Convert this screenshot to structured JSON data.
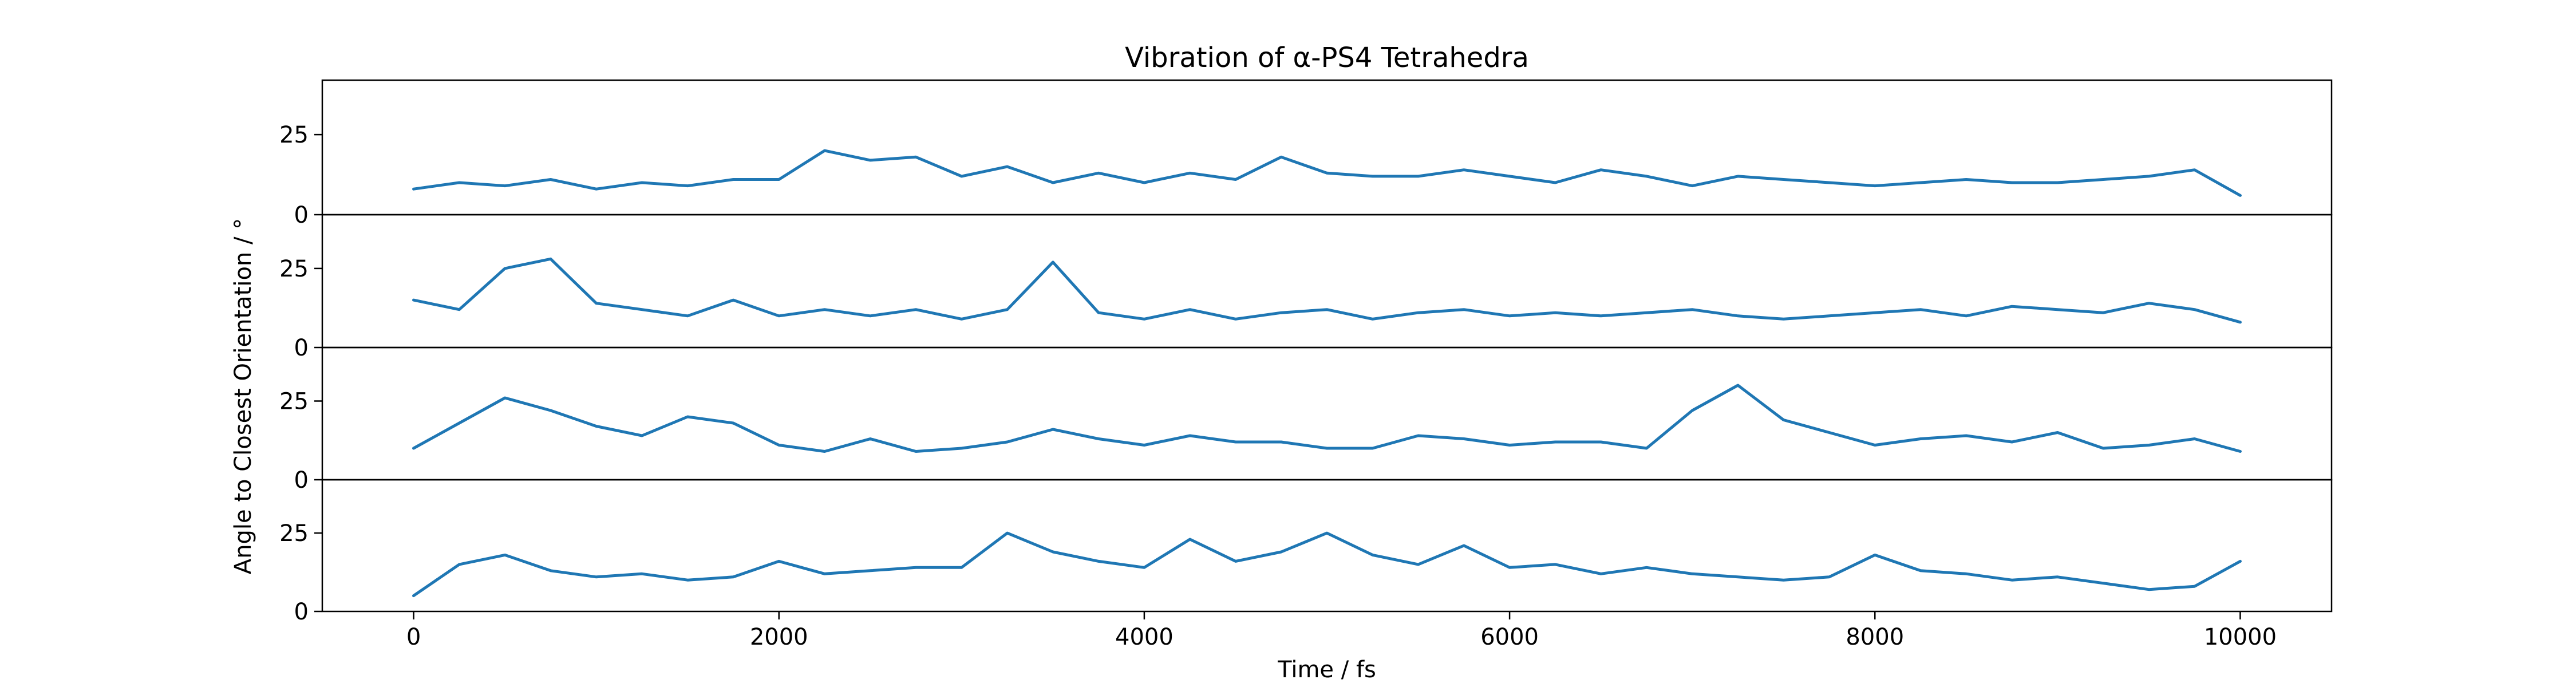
{
  "chart_data": {
    "type": "line",
    "title": "Vibration of α-PS4 Tetrahedra",
    "xlabel": "Time / fs",
    "ylabel": "Angle to Closest Orientation / °",
    "xlim": [
      -500,
      10500
    ],
    "ylim": [
      0,
      42
    ],
    "xticks": [
      0,
      2000,
      4000,
      6000,
      8000,
      10000
    ],
    "xtick_labels": [
      "0",
      "2000",
      "4000",
      "6000",
      "8000",
      "10000"
    ],
    "yticks": [
      0,
      25
    ],
    "ytick_labels": [
      "0",
      "25"
    ],
    "grid": false,
    "legend": "none",
    "line_color": "#1f77b4",
    "panels": [
      {
        "x": [
          0,
          250,
          500,
          750,
          1000,
          1250,
          1500,
          1750,
          2000,
          2250,
          2500,
          2750,
          3000,
          3250,
          3500,
          3750,
          4000,
          4250,
          4500,
          4750,
          5000,
          5250,
          5500,
          5750,
          6000,
          6250,
          6500,
          6750,
          7000,
          7250,
          7500,
          7750,
          8000,
          8250,
          8500,
          8750,
          9000,
          9250,
          9500,
          9750,
          10000
        ],
        "y": [
          8,
          10,
          9,
          11,
          8,
          10,
          9,
          11,
          11,
          20,
          17,
          18,
          12,
          15,
          10,
          13,
          10,
          13,
          11,
          18,
          13,
          12,
          12,
          14,
          12,
          10,
          14,
          12,
          9,
          12,
          11,
          10,
          9,
          10,
          11,
          10,
          10,
          11,
          12,
          14,
          6
        ]
      },
      {
        "x": [
          0,
          250,
          500,
          750,
          1000,
          1250,
          1500,
          1750,
          2000,
          2250,
          2500,
          2750,
          3000,
          3250,
          3500,
          3750,
          4000,
          4250,
          4500,
          4750,
          5000,
          5250,
          5500,
          5750,
          6000,
          6250,
          6500,
          6750,
          7000,
          7250,
          7500,
          7750,
          8000,
          8250,
          8500,
          8750,
          9000,
          9250,
          9500,
          9750,
          10000
        ],
        "y": [
          15,
          12,
          25,
          28,
          14,
          12,
          10,
          15,
          10,
          12,
          10,
          12,
          9,
          12,
          27,
          11,
          9,
          12,
          9,
          11,
          12,
          9,
          11,
          12,
          10,
          11,
          10,
          11,
          12,
          10,
          9,
          10,
          11,
          12,
          10,
          13,
          12,
          11,
          14,
          12,
          8
        ]
      },
      {
        "x": [
          0,
          250,
          500,
          750,
          1000,
          1250,
          1500,
          1750,
          2000,
          2250,
          2500,
          2750,
          3000,
          3250,
          3500,
          3750,
          4000,
          4250,
          4500,
          4750,
          5000,
          5250,
          5500,
          5750,
          6000,
          6250,
          6500,
          6750,
          7000,
          7250,
          7500,
          7750,
          8000,
          8250,
          8500,
          8750,
          9000,
          9250,
          9500,
          9750,
          10000
        ],
        "y": [
          10,
          18,
          26,
          22,
          17,
          14,
          20,
          18,
          11,
          9,
          13,
          9,
          10,
          12,
          16,
          13,
          11,
          14,
          12,
          12,
          10,
          10,
          14,
          13,
          11,
          12,
          12,
          10,
          22,
          30,
          19,
          15,
          11,
          13,
          14,
          12,
          15,
          10,
          11,
          13,
          9
        ]
      },
      {
        "x": [
          0,
          250,
          500,
          750,
          1000,
          1250,
          1500,
          1750,
          2000,
          2250,
          2500,
          2750,
          3000,
          3250,
          3500,
          3750,
          4000,
          4250,
          4500,
          4750,
          5000,
          5250,
          5500,
          5750,
          6000,
          6250,
          6500,
          6750,
          7000,
          7250,
          7500,
          7750,
          8000,
          8250,
          8500,
          8750,
          9000,
          9250,
          9500,
          9750,
          10000
        ],
        "y": [
          5,
          15,
          18,
          13,
          11,
          12,
          10,
          11,
          16,
          12,
          13,
          14,
          14,
          25,
          19,
          16,
          14,
          23,
          16,
          19,
          25,
          18,
          15,
          21,
          14,
          15,
          12,
          14,
          12,
          11,
          10,
          11,
          18,
          13,
          12,
          10,
          11,
          9,
          7,
          8,
          16
        ]
      }
    ]
  }
}
